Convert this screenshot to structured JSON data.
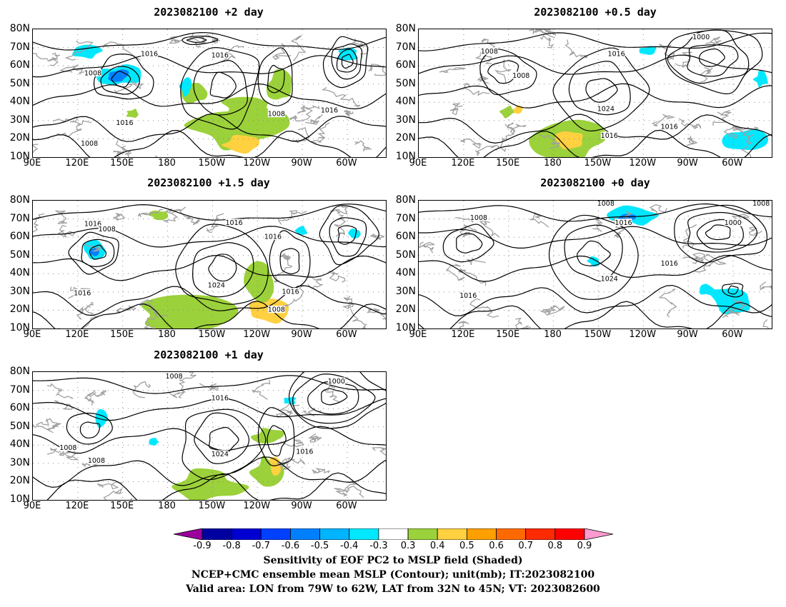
{
  "lat_ticks": [
    "80N",
    "70N",
    "60N",
    "50N",
    "40N",
    "30N",
    "20N",
    "10N"
  ],
  "lon_ticks": [
    "90E",
    "120E",
    "150E",
    "180",
    "150W",
    "120W",
    "90W",
    "60W"
  ],
  "panels": [
    {
      "title": "2023082100 +2 day",
      "labels": [
        "1016",
        "1016",
        "1008",
        "1016",
        "1016",
        "1008",
        "1008"
      ]
    },
    {
      "title": "2023082100 +0.5 day",
      "labels": [
        "1000",
        "1008",
        "1016",
        "1008",
        "1024",
        "1016",
        "1016"
      ]
    },
    {
      "title": "2023082100 +1.5 day",
      "labels": [
        "1016",
        "1008",
        "1016",
        "1016",
        "1024",
        "1016",
        "1016",
        "1008"
      ]
    },
    {
      "title": "2023082100 +0 day",
      "labels": [
        "1008",
        "1008",
        "1016",
        "1000",
        "1016",
        "1024",
        "1016",
        "1008"
      ]
    },
    {
      "title": "2023082100 +1 day",
      "labels": [
        "1008",
        "1000",
        "1016",
        "1008",
        "1008",
        "1024",
        "1016"
      ]
    }
  ],
  "colorbar": {
    "labels": [
      "-0.9",
      "-0.8",
      "-0.7",
      "-0.6",
      "-0.5",
      "-0.4",
      "-0.3",
      "0.3",
      "0.4",
      "0.5",
      "0.6",
      "0.7",
      "0.8",
      "0.9"
    ],
    "colors": [
      "#9b009b",
      "#0000a0",
      "#0000d0",
      "#0040ff",
      "#0080ff",
      "#00b4ff",
      "#00e8ff",
      "#ffffff",
      "#9bd13a",
      "#ffd040",
      "#ffa000",
      "#ff6a00",
      "#ff2a00",
      "#ff0000",
      "#ff9ad0"
    ]
  },
  "footer": {
    "line1": "Sensitivity of EOF PC2 to MSLP field (Shaded)",
    "line2": "NCEP+CMC ensemble mean MSLP (Contour); unit(mb); IT:2023082100",
    "line3": "Valid area: LON from 79W to 62W, LAT from 32N to 45N; VT: 2023082600"
  }
}
